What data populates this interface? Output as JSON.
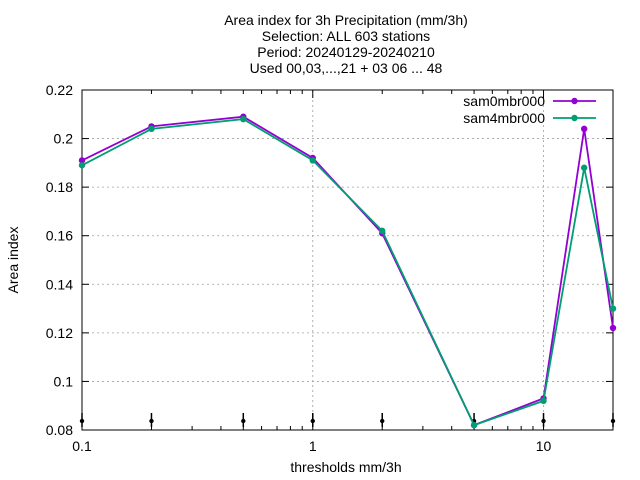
{
  "chart_data": {
    "type": "line",
    "title_lines": [
      "Area index  for 3h Precipitation (mm/3h)",
      "Selection: ALL    603 stations",
      "Period: 20240129-20240210",
      "Used 00,03,...,21 + 03 06 ... 48"
    ],
    "xlabel": "thresholds mm/3h",
    "ylabel": "Area index",
    "x_scale": "log",
    "xlim": [
      0.1,
      20
    ],
    "ylim": [
      0.08,
      0.22
    ],
    "x_ticks": [
      0.1,
      1,
      10
    ],
    "x_tick_labels": [
      "0.1",
      "1",
      "10"
    ],
    "y_ticks": [
      0.08,
      0.1,
      0.12,
      0.14,
      0.16,
      0.18,
      0.2,
      0.22
    ],
    "y_tick_labels": [
      "0.08",
      "0.1",
      "0.12",
      "0.14",
      "0.16",
      "0.18",
      "0.2",
      "0.22"
    ],
    "grid": true,
    "legend_position": "top-right",
    "x": [
      0.1,
      0.2,
      0.5,
      1,
      2,
      5,
      10,
      15,
      20
    ],
    "series": [
      {
        "name": "sam0mbr000",
        "color": "#9400d3",
        "values": [
          0.191,
          0.205,
          0.209,
          0.192,
          0.161,
          0.082,
          0.093,
          0.204,
          0.122
        ]
      },
      {
        "name": "sam4mbr000",
        "color": "#009e73",
        "values": [
          0.189,
          0.204,
          0.208,
          0.191,
          0.162,
          0.082,
          0.092,
          0.188,
          0.13
        ]
      }
    ],
    "error_bar_markers_x": [
      0.1,
      0.2,
      0.5,
      1,
      2,
      5,
      10,
      20
    ]
  }
}
